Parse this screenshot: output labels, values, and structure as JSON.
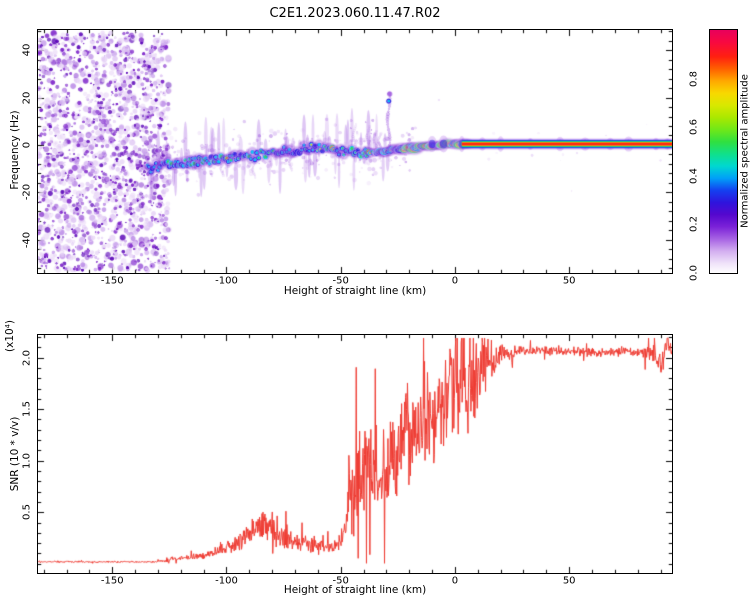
{
  "title": "C2E1.2023.060.11.47.R02",
  "colors": {
    "axis": "#000000",
    "background": "#ffffff",
    "snr_line": "#ee3a31",
    "blob_halo": "#7d1fd3",
    "blob_body": "#2a1ae0",
    "blob_cyan": "#00ccf8",
    "blob_green": "#22dc55",
    "blob_yellow": "#f5e800",
    "blob_orange": "#ff9100",
    "blob_red": "#ff2415",
    "fringe_purple": "#b070e8"
  },
  "chart_data": [
    {
      "type": "heatmap",
      "title": "",
      "xlabel": "Height of straight line (km)",
      "ylabel": "Frequency (Hz)",
      "xlim": [
        -182.5,
        95
      ],
      "ylim": [
        -54,
        48.5
      ],
      "xticks": [
        -150,
        -100,
        -50,
        0,
        50
      ],
      "yticks": [
        -40,
        -20,
        0,
        20,
        40
      ],
      "x_minor_step": 10,
      "y_minor_step": 4,
      "colorbar": {
        "label": "Normalized spectral amplitude",
        "ticks": [
          "0.0",
          "0.2",
          "0.4",
          "0.6",
          "0.8"
        ],
        "min": 0,
        "max": 1,
        "stops": [
          [
            0.0,
            "#ffffff"
          ],
          [
            0.04,
            "#efe2f9"
          ],
          [
            0.09,
            "#d3aef0"
          ],
          [
            0.14,
            "#a763e3"
          ],
          [
            0.19,
            "#7b22d8"
          ],
          [
            0.24,
            "#5508ce"
          ],
          [
            0.29,
            "#2f14dd"
          ],
          [
            0.34,
            "#1440f0"
          ],
          [
            0.39,
            "#00a0f8"
          ],
          [
            0.44,
            "#00d8d0"
          ],
          [
            0.49,
            "#10e08a"
          ],
          [
            0.54,
            "#30e040"
          ],
          [
            0.59,
            "#70e818"
          ],
          [
            0.64,
            "#aae800"
          ],
          [
            0.69,
            "#d8e800"
          ],
          [
            0.74,
            "#f8d800"
          ],
          [
            0.79,
            "#ffa800"
          ],
          [
            0.84,
            "#ff6000"
          ],
          [
            0.89,
            "#ff2010"
          ],
          [
            0.95,
            "#f80840"
          ],
          [
            1.0,
            "#e8005c"
          ]
        ]
      },
      "noise_region": {
        "x_range": [
          -182.5,
          -126.5
        ],
        "palette": [
          "#ead9f7",
          "#d9bcf2",
          "#bd8fe8",
          "#9a55d8",
          "#7a1fc8",
          "#5c08b8"
        ],
        "weights": [
          0.32,
          0.26,
          0.18,
          0.12,
          0.07,
          0.05
        ]
      },
      "ridge_path": [
        [
          -134,
          -10
        ],
        [
          -128,
          -9
        ],
        [
          -122,
          -8.2
        ],
        [
          -116,
          -7.5
        ],
        [
          -110,
          -6.6
        ],
        [
          -104,
          -6
        ],
        [
          -98,
          -5.4
        ],
        [
          -92,
          -5
        ],
        [
          -86,
          -4.4
        ],
        [
          -80,
          -3.5
        ],
        [
          -74,
          -2.6
        ],
        [
          -68,
          -2
        ],
        [
          -62,
          -1.3
        ],
        [
          -58,
          -1.6
        ],
        [
          -54,
          -2.2
        ],
        [
          -50,
          -2.6
        ],
        [
          -46,
          -3.2
        ],
        [
          -42,
          -3.5
        ],
        [
          -38,
          -3.1
        ],
        [
          -34,
          -2.8
        ],
        [
          -30,
          -2.4
        ],
        [
          -26,
          -1.8
        ],
        [
          -22,
          -1.5
        ],
        [
          -18,
          -1.1
        ],
        [
          -14,
          -0.6
        ],
        [
          -10,
          -0.2
        ],
        [
          -6,
          0.2
        ],
        [
          0,
          0.4
        ],
        [
          6,
          0.4
        ]
      ],
      "stripe": {
        "x_range": [
          3,
          95
        ],
        "center_freq": 0.4,
        "layers": [
          [
            "#9b30e0",
            5.5,
            0.3
          ],
          [
            "#2a1ae0",
            4.2,
            1.0
          ],
          [
            "#00c8f8",
            3.3,
            1.0
          ],
          [
            "#20dc50",
            2.7,
            1.0
          ],
          [
            "#f0e800",
            2.0,
            1.0
          ],
          [
            "#ff2415",
            1.5,
            1.0
          ]
        ],
        "bump_positions": [
          -10,
          -5,
          3,
          12,
          20,
          33,
          46,
          57,
          68,
          76,
          88,
          93
        ]
      },
      "spur": {
        "km": -29,
        "freq_top": 22,
        "blob_freq": 18.5,
        "cap_freq": 21.5
      },
      "wisps": [
        [
          -44,
          9
        ],
        [
          -38,
          8
        ],
        [
          -35,
          6
        ],
        [
          -33,
          5
        ],
        [
          -88,
          -14
        ],
        [
          -72,
          -11
        ],
        [
          -102,
          -13
        ]
      ]
    },
    {
      "type": "line",
      "title": "",
      "xlabel": "Height of straight line (km)",
      "ylabel": "SNR (10 * v/v)",
      "scale_label": "(x10⁴)",
      "xlim": [
        -182.5,
        95
      ],
      "ylim": [
        -0.09,
        2.22
      ],
      "xticks": [
        -150,
        -100,
        -50,
        0,
        50
      ],
      "yticks": [
        "0.5",
        "1.0",
        "1.5",
        "2.0"
      ],
      "x_minor_step": 10,
      "y_minor_step": 0.1,
      "line_color": "#ee3a31",
      "envelope": [
        [
          -182.5,
          0.015,
          0.02
        ],
        [
          -131,
          0.015,
          0.02
        ],
        [
          -126,
          0.03,
          0.05
        ],
        [
          -116,
          0.05,
          0.06
        ],
        [
          -106,
          0.08,
          0.1
        ],
        [
          -99,
          0.14,
          0.16
        ],
        [
          -93,
          0.2,
          0.22
        ],
        [
          -87,
          0.3,
          0.33
        ],
        [
          -82,
          0.32,
          0.35
        ],
        [
          -77,
          0.22,
          0.25
        ],
        [
          -70,
          0.18,
          0.2
        ],
        [
          -62,
          0.15,
          0.18
        ],
        [
          -54,
          0.13,
          0.16
        ],
        [
          -49,
          0.18,
          0.25
        ],
        [
          -46,
          0.45,
          0.75
        ],
        [
          -43,
          0.55,
          0.95
        ],
        [
          -40,
          0.7,
          1.15
        ],
        [
          -37,
          0.75,
          1.3
        ],
        [
          -33,
          0.6,
          1.1
        ],
        [
          -29,
          0.7,
          1.15
        ],
        [
          -25,
          0.85,
          1.2
        ],
        [
          -21,
          1.0,
          1.5
        ],
        [
          -17,
          1.0,
          1.2
        ],
        [
          -13,
          1.15,
          1.05
        ],
        [
          -9,
          1.3,
          1.05
        ],
        [
          -5,
          1.4,
          1.15
        ],
        [
          -1,
          1.5,
          1.3
        ],
        [
          3,
          1.6,
          1.25
        ],
        [
          7,
          1.5,
          1.45
        ],
        [
          11,
          1.7,
          0.95
        ],
        [
          15,
          1.85,
          0.6
        ],
        [
          19,
          1.95,
          0.35
        ],
        [
          24,
          2.02,
          0.16
        ],
        [
          35,
          2.05,
          0.1
        ],
        [
          50,
          2.04,
          0.1
        ],
        [
          65,
          2.03,
          0.12
        ],
        [
          80,
          2.04,
          0.12
        ],
        [
          87,
          2.0,
          0.2
        ],
        [
          90,
          1.86,
          0.3
        ],
        [
          93,
          2.1,
          0.28
        ],
        [
          95,
          2.03,
          0.1
        ]
      ]
    }
  ]
}
